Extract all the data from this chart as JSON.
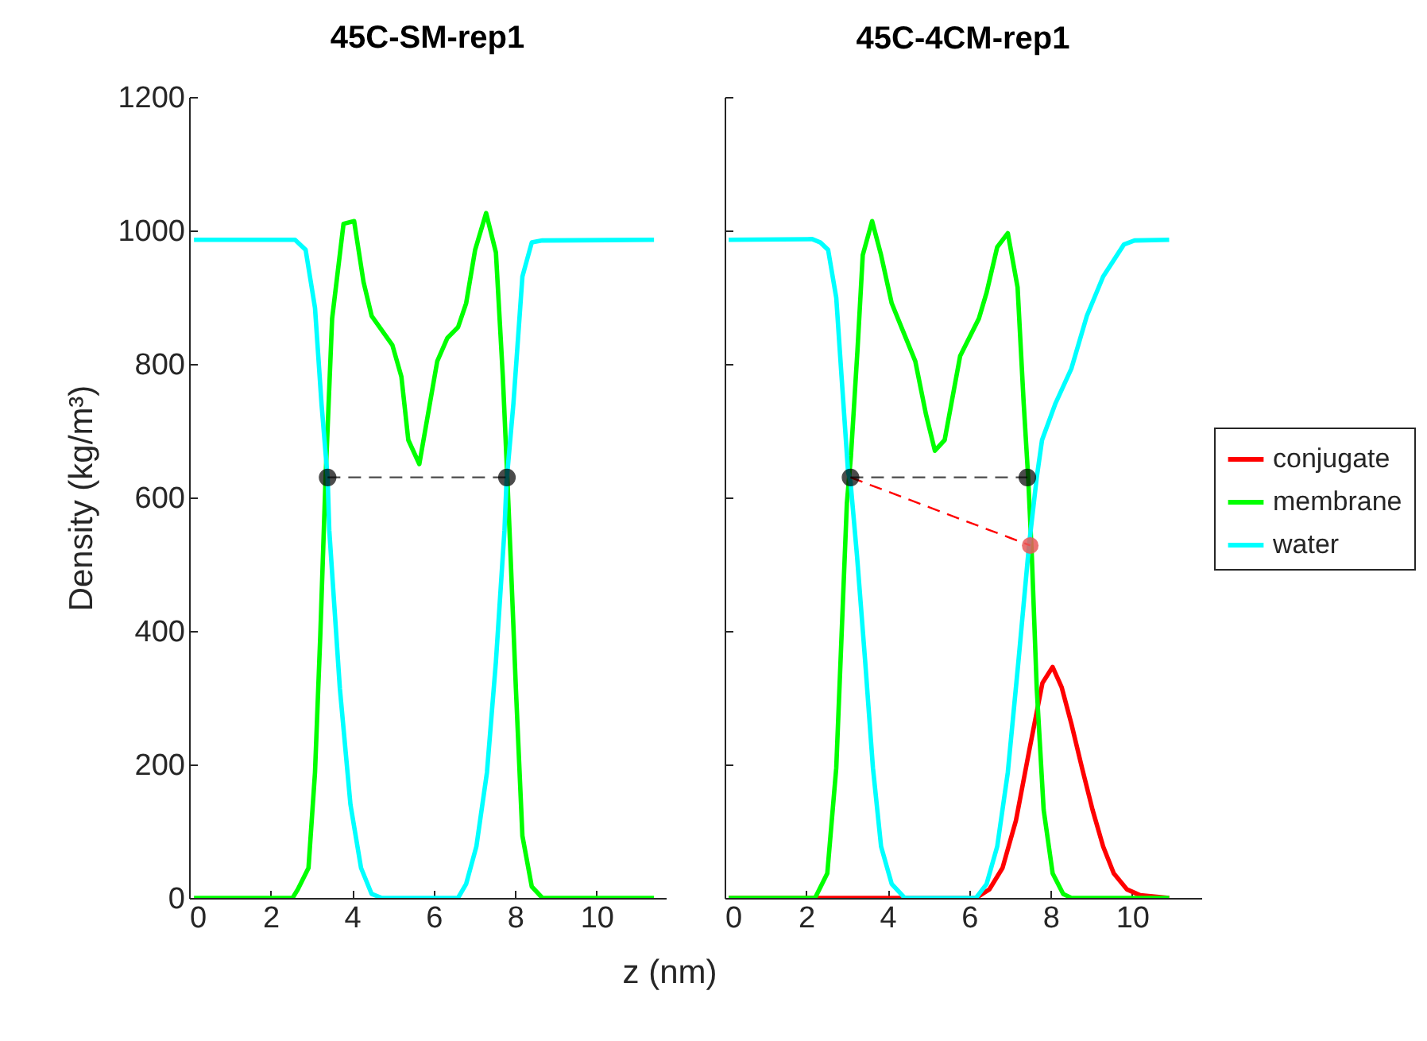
{
  "chart_data": [
    {
      "type": "line",
      "title": "45C-SM-rep1",
      "xlabel": "z (nm)",
      "ylabel": "Density (kg/m³)",
      "xlim": [
        0,
        11.7
      ],
      "xticks": [
        0,
        2,
        4,
        6,
        8,
        10
      ],
      "ylim": [
        0,
        1200
      ],
      "yticks": [
        0,
        200,
        400,
        600,
        800,
        1000,
        1200
      ],
      "legend": "right",
      "series": [
        {
          "name": "membrane",
          "color": "#00ff00",
          "x": [
            0.12,
            2.54,
            2.67,
            2.93,
            3.09,
            3.22,
            3.35,
            3.51,
            3.79,
            4.05,
            4.28,
            4.48,
            4.99,
            5.21,
            5.38,
            5.65,
            6.09,
            6.34,
            6.6,
            6.8,
            7.02,
            7.29,
            7.53,
            7.7,
            7.82,
            7.89,
            8.02,
            8.18,
            8.41,
            8.67,
            11.41
          ],
          "values": [
            0,
            0,
            13,
            45,
            188,
            394,
            630,
            868,
            1010,
            1014,
            923,
            872,
            828,
            781,
            686,
            650,
            804,
            839,
            855,
            891,
            971,
            1026,
            967,
            781,
            615,
            512,
            314,
            93,
            17,
            0,
            0
          ]
        },
        {
          "name": "water",
          "color": "#00ffff",
          "x": [
            0.12,
            2.6,
            2.86,
            3.09,
            3.25,
            3.4,
            3.44,
            3.7,
            3.96,
            4.22,
            4.48,
            4.73,
            6.6,
            6.8,
            7.05,
            7.31,
            7.53,
            7.74,
            7.79,
            7.96,
            8.18,
            8.41,
            8.67,
            11.41
          ],
          "values": [
            986,
            986,
            971,
            884,
            740,
            629,
            551,
            314,
            140,
            45,
            6,
            0,
            0,
            21,
            77,
            188,
            354,
            551,
            623,
            741,
            931,
            982,
            985,
            986
          ]
        },
        {
          "type": "line",
          "color": "#000000",
          "line_style": "dashed",
          "marker": "circle",
          "x": [
            3.4,
            7.8
          ],
          "values": [
            630,
            630
          ]
        }
      ]
    },
    {
      "type": "line",
      "title": "45C-4CM-rep1",
      "xlim": [
        0,
        11.7
      ],
      "xticks": [
        0,
        2,
        4,
        6,
        8,
        10
      ],
      "ylim": [
        0,
        1200
      ],
      "yticks": [
        0,
        200,
        400,
        600,
        800,
        1000,
        1200
      ],
      "tick_labels": "x",
      "legend": "right",
      "series": [
        {
          "name": "conjugate",
          "color": "#ff0000",
          "x": [
            0.1,
            6.17,
            6.5,
            6.82,
            7.15,
            7.47,
            7.8,
            8.05,
            8.27,
            8.51,
            8.77,
            9.03,
            9.29,
            9.55,
            9.87,
            10.2,
            10.91
          ],
          "values": [
            0,
            0,
            13,
            45,
            116,
            219,
            322,
            346,
            316,
            261,
            195,
            132,
            77,
            37,
            13,
            4,
            0
          ]
        },
        {
          "name": "membrane",
          "color": "#00ff00",
          "x": [
            0.1,
            2.22,
            2.52,
            2.74,
            2.87,
            3.0,
            3.1,
            3.26,
            3.39,
            3.62,
            3.84,
            4.1,
            4.36,
            4.68,
            4.94,
            5.16,
            5.4,
            5.78,
            6.24,
            6.43,
            6.69,
            6.95,
            7.19,
            7.34,
            7.45,
            7.54,
            7.66,
            7.83,
            8.05,
            8.31,
            8.51,
            10.91
          ],
          "values": [
            0,
            0,
            37,
            195,
            393,
            591,
            662,
            820,
            963,
            1014,
            963,
            891,
            852,
            804,
            725,
            670,
            686,
            812,
            868,
            907,
            975,
            996,
            915,
            741,
            630,
            512,
            314,
            132,
            37,
            6,
            0,
            0
          ]
        },
        {
          "name": "water",
          "color": "#00ffff",
          "x": [
            0.1,
            2.15,
            2.35,
            2.54,
            2.74,
            2.87,
            3.03,
            3.09,
            3.25,
            3.45,
            3.64,
            3.84,
            4.1,
            4.42,
            6.17,
            6.43,
            6.69,
            6.95,
            7.21,
            7.47,
            7.66,
            7.79,
            8.12,
            8.51,
            8.89,
            9.29,
            9.8,
            10.06,
            10.91
          ],
          "values": [
            986,
            987,
            982,
            971,
            899,
            781,
            638,
            623,
            512,
            354,
            195,
            77,
            21,
            0,
            0,
            21,
            77,
            188,
            354,
            528,
            630,
            686,
            741,
            793,
            872,
            931,
            979,
            985,
            986
          ]
        },
        {
          "type": "line",
          "color": "#ff0000",
          "line_style": "dashed",
          "x": [
            3.09,
            7.5
          ],
          "values": [
            630,
            528
          ]
        },
        {
          "type": "line",
          "color": "#000000",
          "line_style": "dashed",
          "marker": "circle",
          "x": [
            3.09,
            7.43
          ],
          "values": [
            630,
            630
          ]
        },
        {
          "type": "scatter",
          "color": "#e85a5a",
          "marker": "circle",
          "x": [
            7.5
          ],
          "values": [
            528
          ]
        }
      ]
    }
  ]
}
